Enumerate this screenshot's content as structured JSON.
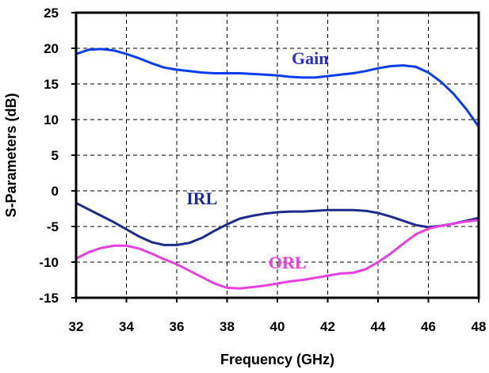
{
  "chart_data": {
    "type": "line",
    "xlabel": "Frequency (GHz)",
    "ylabel": "S-Parameters (dB)",
    "xlim": [
      32,
      48
    ],
    "ylim": [
      -15,
      25
    ],
    "xticks": [
      "32",
      "34",
      "36",
      "38",
      "40",
      "42",
      "44",
      "46",
      "48"
    ],
    "yticks": [
      "25",
      "20",
      "15",
      "10",
      "5",
      "0",
      "-5",
      "-10",
      "-15"
    ],
    "grid": true,
    "series": [
      {
        "name": "Gain",
        "color": "#0a3cf0",
        "x": [
          32,
          32.5,
          33,
          33.5,
          34,
          34.5,
          35,
          35.5,
          36,
          36.5,
          37,
          37.5,
          38,
          38.5,
          39,
          39.5,
          40,
          40.5,
          41,
          41.5,
          42,
          42.5,
          43,
          43.5,
          44,
          44.5,
          45,
          45.5,
          46,
          46.5,
          47,
          47.5,
          48
        ],
        "y": [
          19.2,
          19.8,
          19.9,
          19.7,
          19.2,
          18.6,
          17.9,
          17.3,
          17.0,
          16.8,
          16.6,
          16.5,
          16.5,
          16.5,
          16.4,
          16.3,
          16.2,
          16.0,
          15.9,
          15.9,
          16.1,
          16.3,
          16.5,
          16.8,
          17.2,
          17.5,
          17.6,
          17.4,
          16.6,
          15.3,
          13.6,
          11.5,
          9.0
        ]
      },
      {
        "name": "IRL",
        "color": "#1f2a8a",
        "x": [
          32,
          32.5,
          33,
          33.5,
          34,
          34.5,
          35,
          35.5,
          36,
          36.5,
          37,
          37.5,
          38,
          38.5,
          39,
          39.5,
          40,
          40.5,
          41,
          41.5,
          42,
          42.5,
          43,
          43.5,
          44,
          44.5,
          45,
          45.5,
          46,
          46.5,
          47,
          47.5,
          48
        ],
        "y": [
          -1.7,
          -2.6,
          -3.5,
          -4.4,
          -5.4,
          -6.4,
          -7.2,
          -7.6,
          -7.6,
          -7.3,
          -6.6,
          -5.6,
          -4.7,
          -3.9,
          -3.5,
          -3.2,
          -3.0,
          -2.9,
          -2.9,
          -2.8,
          -2.7,
          -2.7,
          -2.7,
          -2.8,
          -3.1,
          -3.6,
          -4.2,
          -4.8,
          -5.1,
          -4.9,
          -4.6,
          -4.2,
          -3.8
        ]
      },
      {
        "name": "ORL",
        "color": "#e83fe0",
        "x": [
          32,
          32.5,
          33,
          33.5,
          34,
          34.5,
          35,
          35.5,
          36,
          36.5,
          37,
          37.5,
          38,
          38.5,
          39,
          39.5,
          40,
          40.5,
          41,
          41.5,
          42,
          42.5,
          43,
          43.5,
          44,
          44.5,
          45,
          45.5,
          46,
          46.5,
          47,
          47.5,
          48
        ],
        "y": [
          -9.5,
          -8.6,
          -8.0,
          -7.7,
          -7.7,
          -8.1,
          -8.8,
          -9.6,
          -10.3,
          -11.2,
          -12.1,
          -13.0,
          -13.6,
          -13.7,
          -13.5,
          -13.3,
          -13.0,
          -12.7,
          -12.5,
          -12.2,
          -11.9,
          -11.6,
          -11.5,
          -11.0,
          -10.0,
          -8.8,
          -7.4,
          -6.1,
          -5.3,
          -4.9,
          -4.6,
          -4.3,
          -4.1
        ]
      }
    ],
    "annotations": [
      {
        "text": "Gain",
        "x": 41.3,
        "y": 17.8,
        "color": "#2b30c8"
      },
      {
        "text": "IRL",
        "x": 37.0,
        "y": -1.9,
        "color": "#1f2a8a"
      },
      {
        "text": "ORL",
        "x": 40.4,
        "y": -10.9,
        "color": "#e83fe0"
      }
    ]
  }
}
